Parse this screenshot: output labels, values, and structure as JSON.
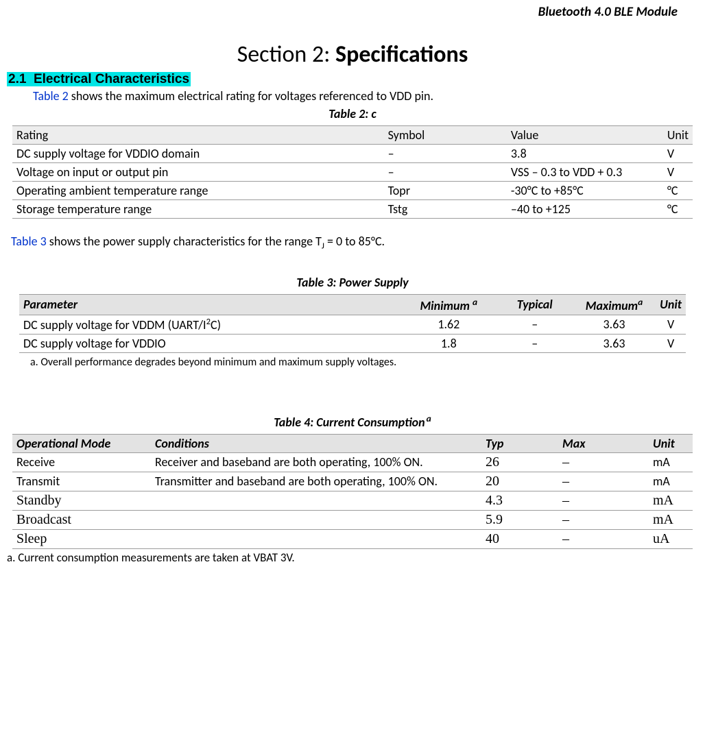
{
  "header": {
    "product": "Bluetooth 4.0 BLE    Module"
  },
  "section": {
    "prefix": "Section 2:",
    "title": "Specifications"
  },
  "subsection": {
    "num": "2.1",
    "title": "Electrical Characteristics"
  },
  "intro2": {
    "link": "Table 2",
    "rest": " shows the maximum electrical rating for voltages referenced to VDD pin."
  },
  "table2": {
    "caption": "Table 2:  c",
    "headers": [
      "Rating",
      "Symbol",
      "Value",
      "Unit"
    ],
    "rows": [
      [
        "DC supply voltage for VDDIO domain",
        "–",
        "3.8",
        "V"
      ],
      [
        "Voltage on input or output pin",
        "–",
        "VSS    – 0.3 to VDD + 0.3",
        "V"
      ],
      [
        "Operating ambient temperature range",
        "Topr",
        "-30°C to +85°C",
        "°C"
      ],
      [
        "Storage temperature range",
        "Tstg",
        "–40 to +125",
        "°C"
      ]
    ]
  },
  "intro3": {
    "link": "Table 3",
    "rest1": " shows the power supply characteristics for the range T",
    "sub": "J",
    "rest2": " = 0 to 85°C."
  },
  "table3": {
    "caption": "Table 3:  Power Supply",
    "headers": {
      "p": "Parameter",
      "min": "Minimum",
      "a": "a",
      "typ": "Typical",
      "max": "Maximum",
      "unit": "Unit"
    },
    "rows": [
      {
        "p1": "DC supply voltage for VDDM (UART/I",
        "sup": "2",
        "p2": "C)",
        "min": "1.62",
        "typ": "–",
        "max": "3.63",
        "unit": "V"
      },
      {
        "p1": "DC supply voltage for VDDIO",
        "sup": "",
        "p2": "",
        "min": "1.8",
        "typ": "–",
        "max": "3.63",
        "unit": "V"
      }
    ],
    "footnote": "a. Overall performance degrades beyond minimum and maximum supply voltages."
  },
  "table4": {
    "caption": "Table 4:  Current Consumption",
    "caption_sup": "a",
    "headers": [
      "Operational Mode",
      "Conditions",
      "Typ",
      "Max",
      "Unit"
    ],
    "rows": [
      {
        "mode": "Receive",
        "modeSerif": false,
        "cond": "Receiver and baseband are both operating, 100% ON.",
        "typ": "26",
        "max": "–",
        "unit": "mA",
        "unitSerif": false
      },
      {
        "mode": "Transmit",
        "modeSerif": false,
        "cond": "Transmitter and baseband are both operating, 100% ON.",
        "typ": "20",
        "max": "–",
        "unit": "mA",
        "unitSerif": false
      },
      {
        "mode": "Standby",
        "modeSerif": true,
        "cond": "",
        "typ": "4.3",
        "max": "–",
        "unit": "mA",
        "unitSerif": true
      },
      {
        "mode": "Broadcast",
        "modeSerif": true,
        "cond": "",
        "typ": "5.9",
        "max": "–",
        "unit": "mA",
        "unitSerif": true
      },
      {
        "mode": "Sleep",
        "modeSerif": true,
        "cond": "",
        "typ": "40",
        "max": "–",
        "unit": "uA",
        "unitSerif": true
      }
    ],
    "footnote": "a. Current consumption measurements are taken at VBAT 3V."
  }
}
